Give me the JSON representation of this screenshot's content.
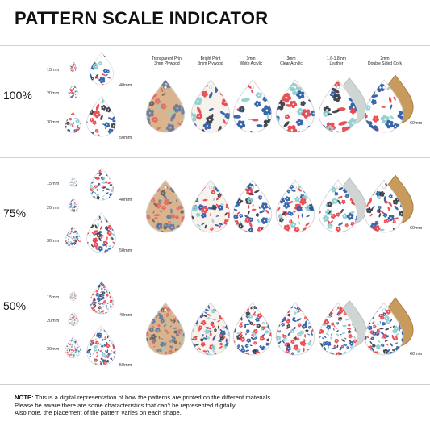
{
  "title": "PATTERN SCALE INDICATOR",
  "sizes": [
    "15mm",
    "20mm",
    "30mm",
    "40mm",
    "50mm"
  ],
  "size_right": "60mm",
  "materials": [
    {
      "line1": "Transparent Print",
      "line2": "3mm Plywood"
    },
    {
      "line1": "Bright Print",
      "line2": "3mm Plywood"
    },
    {
      "line1": "3mm",
      "line2": "White Acrylic"
    },
    {
      "line1": "3mm",
      "line2": "Clear Acrylic"
    },
    {
      "line1": "1.6-1.8mm",
      "line2": "Leather"
    },
    {
      "line1": "2mm",
      "line2": "Double Sided Cork"
    }
  ],
  "rows": [
    {
      "scale": "100%"
    },
    {
      "scale": "75%"
    },
    {
      "scale": "50%"
    }
  ],
  "note": {
    "label": "NOTE:",
    "line1": "This is a digital representation of how the patterns are printed on the different materials.",
    "line2": "Please be aware there are some characteristics that can't be represented digitally.",
    "line3": "Also note, the placement of the pattern varies on each shape."
  },
  "colors": {
    "red": "#e8474f",
    "blue": "#2f5fa8",
    "teal": "#8fcfd0",
    "dark": "#3a3f4a",
    "wood": "#d9b48c",
    "cork": "#c89a5c",
    "leather": "#cfd5d2"
  }
}
